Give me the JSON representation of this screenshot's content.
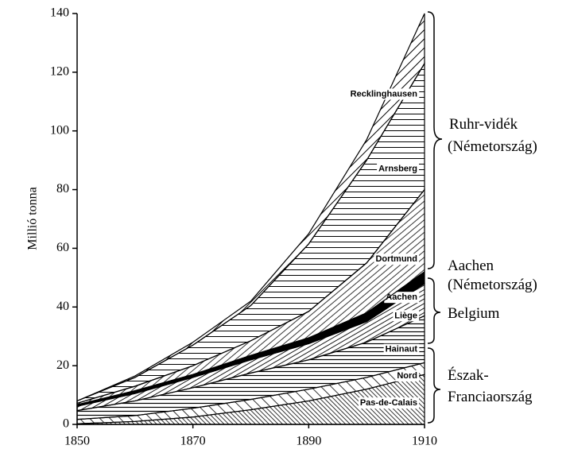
{
  "chart_data": {
    "type": "stacked_area",
    "y_label": "Millió tonna",
    "x": [
      1850,
      1860,
      1870,
      1880,
      1890,
      1900,
      1910
    ],
    "xlim": [
      1850,
      1910
    ],
    "xticks": [
      1850,
      1870,
      1890,
      1910
    ],
    "ylim": [
      0,
      140
    ],
    "yticks": [
      0,
      20,
      40,
      60,
      80,
      100,
      120,
      140
    ],
    "series": [
      {
        "name": "Pas-de-Calais",
        "color": "#000000",
        "values": [
          0.2,
          1,
          2.5,
          5,
          8,
          12,
          17
        ]
      },
      {
        "name": "Nord",
        "color": "#000000",
        "values": [
          1.5,
          2,
          3,
          3.5,
          4,
          4,
          4
        ]
      },
      {
        "name": "Hainaut",
        "color": "#000000",
        "values": [
          3,
          5,
          7,
          9,
          10,
          12,
          16
        ]
      },
      {
        "name": "Liège",
        "color": "#000000",
        "values": [
          1.5,
          2.5,
          3.5,
          4.5,
          5.5,
          7,
          11
        ]
      },
      {
        "name": "Aachen",
        "color": "#000000",
        "values": [
          0.5,
          1,
          1,
          1.5,
          2,
          3,
          4
        ]
      },
      {
        "name": "Dortmund",
        "color": "#000000",
        "values": [
          0.5,
          1.5,
          3,
          5,
          9,
          17,
          28
        ]
      },
      {
        "name": "Arnsberg",
        "color": "#000000",
        "values": [
          0.8,
          3,
          7,
          12,
          23,
          35,
          43
        ]
      },
      {
        "name": "Recklinghausen",
        "color": "#000000",
        "values": [
          0,
          0.5,
          1,
          1.5,
          3.5,
          7,
          17
        ]
      }
    ],
    "groups": [
      "Ruhr-vidék",
      "(Németország)",
      "Aachen",
      "(Németország)",
      "Belgium",
      "Észak-",
      "Franciaország"
    ]
  }
}
